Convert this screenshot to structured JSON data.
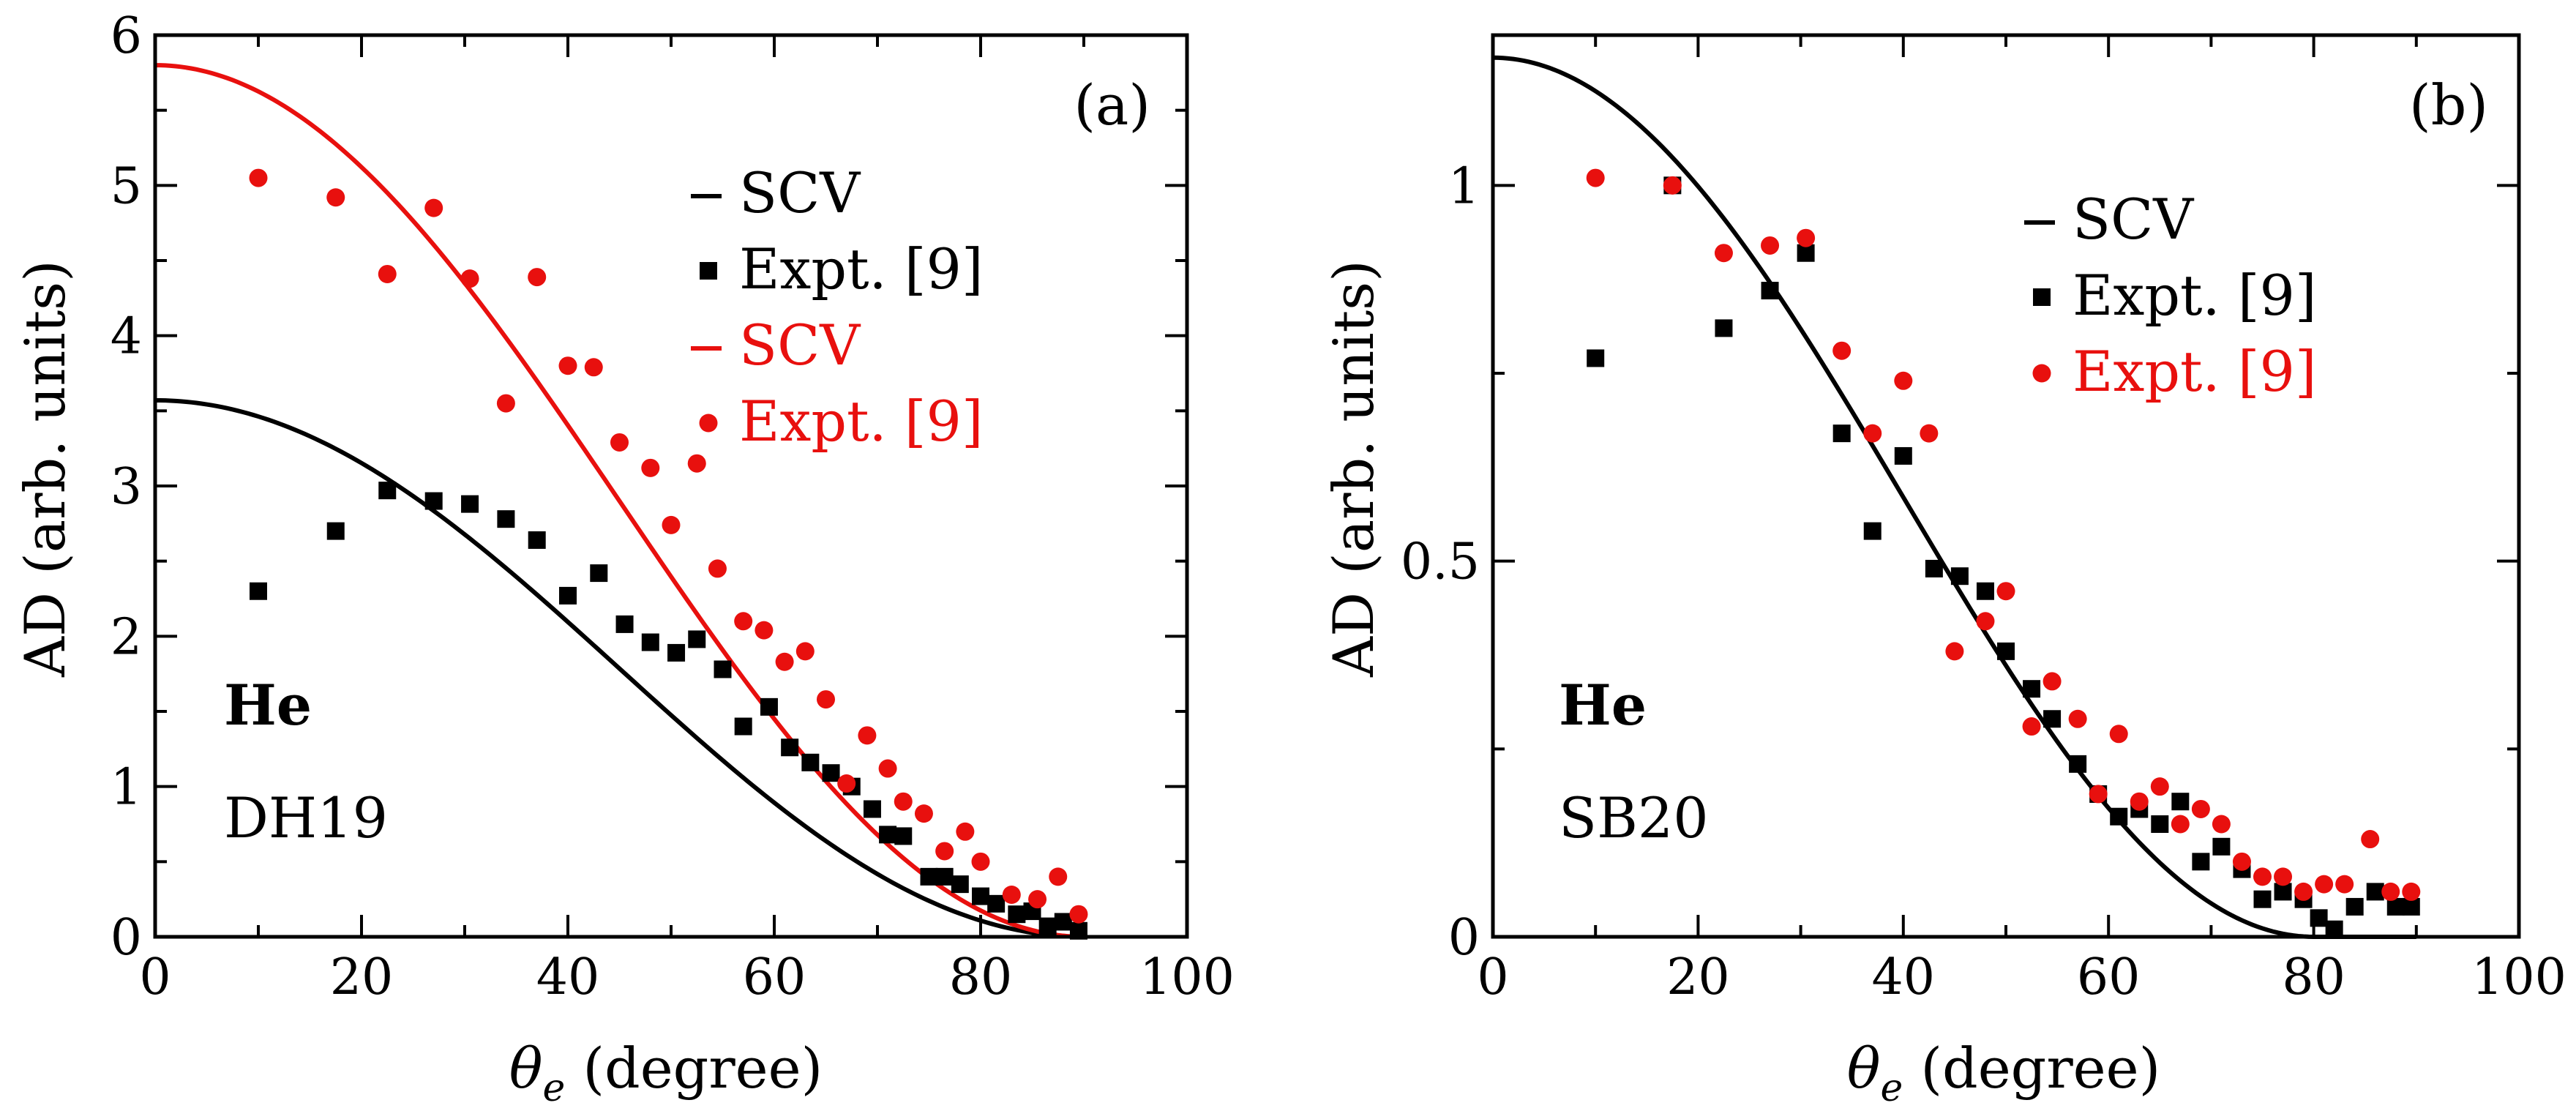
{
  "colors": {
    "black": "#000000",
    "red": "#e8100e"
  },
  "chart_data": [
    {
      "type": "scatter",
      "panel_label": "(a)",
      "xlabel": "θe (degree)",
      "ylabel": "AD (arb. units)",
      "xlim": [
        0,
        100
      ],
      "ylim": [
        0,
        6
      ],
      "xticks": [
        0,
        20,
        40,
        60,
        80,
        100
      ],
      "yticks": [
        0,
        1,
        2,
        3,
        4,
        5,
        6
      ],
      "xtick_labels": [
        "0",
        "20",
        "40",
        "60",
        "80",
        "100"
      ],
      "ytick_labels": [
        "0",
        "1",
        "2",
        "3",
        "4",
        "5",
        "6"
      ],
      "annotation_title": "He",
      "annotation_sub": "DH19",
      "legend": [
        {
          "label": "SCV",
          "kind": "line",
          "color": "#000000"
        },
        {
          "label": "Expt. [9]",
          "kind": "square",
          "color": "#000000"
        },
        {
          "label": "SCV",
          "kind": "line",
          "color": "#e8100e"
        },
        {
          "label": "Expt. [9]",
          "kind": "circle",
          "color": "#e8100e"
        }
      ],
      "lines": [
        {
          "name": "SCV (black)",
          "color": "#000000",
          "amplitude": 3.57,
          "cutoff": 90
        },
        {
          "name": "SCV (red)",
          "color": "#e8100e",
          "amplitude": 5.8,
          "cutoff": 90
        }
      ],
      "series": [
        {
          "name": "Expt. [9] (black squares)",
          "marker": "square",
          "color": "#000000",
          "x": [
            10,
            17.5,
            22.5,
            27,
            30.5,
            34,
            37,
            40,
            43,
            45.5,
            48,
            50.5,
            52.5,
            55,
            57,
            59.5,
            61.5,
            63.5,
            65.5,
            67.5,
            69.5,
            71,
            72.5,
            75,
            76.5,
            78,
            80,
            81.5,
            83.5,
            85,
            86.5,
            88,
            89.5
          ],
          "y": [
            2.3,
            2.7,
            2.97,
            2.9,
            2.88,
            2.78,
            2.64,
            2.27,
            2.42,
            2.08,
            1.96,
            1.89,
            1.98,
            1.78,
            1.4,
            1.53,
            1.26,
            1.16,
            1.09,
            1.0,
            0.85,
            0.68,
            0.67,
            0.4,
            0.4,
            0.35,
            0.27,
            0.22,
            0.15,
            0.17,
            0.07,
            0.1,
            0.04
          ]
        },
        {
          "name": "Expt. [9] (red circles)",
          "marker": "circle",
          "color": "#e8100e",
          "x": [
            10,
            17.5,
            22.5,
            27,
            30.5,
            34,
            37,
            40,
            42.5,
            45,
            48,
            50,
            52.5,
            54.5,
            57,
            59,
            61,
            63,
            65,
            67,
            69,
            71,
            72.5,
            74.5,
            76.5,
            78.5,
            80,
            83,
            85.5,
            87.5,
            89.5
          ],
          "y": [
            5.05,
            4.92,
            4.41,
            4.85,
            4.38,
            3.55,
            4.39,
            3.8,
            3.79,
            3.29,
            3.12,
            2.74,
            3.15,
            2.45,
            2.1,
            2.04,
            1.83,
            1.9,
            1.58,
            1.02,
            1.34,
            1.12,
            0.9,
            0.82,
            0.57,
            0.7,
            0.5,
            0.28,
            0.25,
            0.4,
            0.15
          ]
        }
      ]
    },
    {
      "type": "scatter",
      "panel_label": "(b)",
      "xlabel": "θe (degree)",
      "ylabel": "AD (arb. units)",
      "xlim": [
        0,
        100
      ],
      "ylim": [
        0,
        1.2
      ],
      "xticks": [
        0,
        20,
        40,
        60,
        80,
        100
      ],
      "yticks": [
        0,
        0.5,
        1
      ],
      "xtick_labels": [
        "0",
        "20",
        "40",
        "60",
        "80",
        "100"
      ],
      "ytick_labels": [
        "0",
        "0.5",
        "1"
      ],
      "annotation_title": "He",
      "annotation_sub": "SB20",
      "legend": [
        {
          "label": "SCV",
          "kind": "line",
          "color": "#000000"
        },
        {
          "label": "Expt. [9]",
          "kind": "square",
          "color": "#000000"
        },
        {
          "label": "Expt. [9]",
          "kind": "circle",
          "color": "#e8100e"
        }
      ],
      "lines": [
        {
          "name": "SCV (black)",
          "color": "#000000",
          "amplitude": 1.17,
          "cutoff": 80
        }
      ],
      "series": [
        {
          "name": "Expt. [9] (black squares)",
          "marker": "square",
          "color": "#000000",
          "x": [
            10,
            17.5,
            22.5,
            27,
            30.5,
            34,
            37,
            40,
            43,
            45.5,
            48,
            50,
            52.5,
            54.5,
            57,
            59,
            61,
            63,
            65,
            67,
            69,
            71,
            73,
            75,
            77,
            79,
            80.5,
            82,
            84,
            86,
            88,
            89.5
          ],
          "y": [
            0.77,
            1.0,
            0.81,
            0.86,
            0.91,
            0.67,
            0.54,
            0.64,
            0.49,
            0.48,
            0.46,
            0.38,
            0.33,
            0.29,
            0.23,
            0.19,
            0.16,
            0.17,
            0.15,
            0.18,
            0.1,
            0.12,
            0.09,
            0.05,
            0.06,
            0.05,
            0.025,
            0.01,
            0.04,
            0.06,
            0.04,
            0.04
          ]
        },
        {
          "name": "Expt. [9] (red circles)",
          "marker": "circle",
          "color": "#e8100e",
          "x": [
            10,
            17.5,
            22.5,
            27,
            30.5,
            34,
            37,
            40,
            42.5,
            45,
            48,
            50,
            52.5,
            54.5,
            57,
            59,
            61,
            63,
            65,
            67,
            69,
            71,
            73,
            75,
            77,
            79,
            81,
            83,
            85.5,
            87.5,
            89.5
          ],
          "y": [
            1.01,
            1.0,
            0.91,
            0.92,
            0.93,
            0.78,
            0.67,
            0.74,
            0.67,
            0.38,
            0.42,
            0.46,
            0.28,
            0.34,
            0.29,
            0.19,
            0.27,
            0.18,
            0.2,
            0.15,
            0.17,
            0.15,
            0.1,
            0.08,
            0.08,
            0.06,
            0.07,
            0.07,
            0.13,
            0.06,
            0.06
          ]
        }
      ]
    }
  ]
}
